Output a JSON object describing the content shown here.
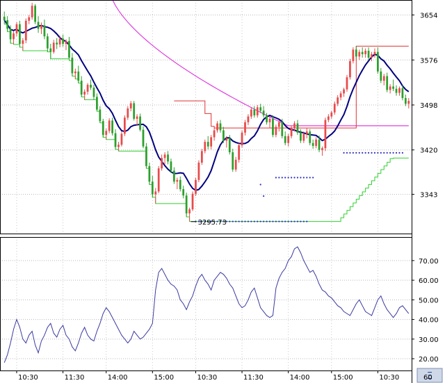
{
  "chart_data": [
    {
      "type": "candlestick",
      "panel": "price",
      "y_ticks": [
        "3654",
        "3576",
        "3498",
        "3420",
        "3343"
      ],
      "y_tick_values": [
        3654,
        3576,
        3498,
        3420,
        3343
      ],
      "ylim": [
        3275,
        3680
      ],
      "x_count": 132,
      "low_annotation": "3295.73",
      "low_annotation_value": 3295.73,
      "colors": {
        "up": "#e84a4a",
        "down": "#2ca02c",
        "ma": "#000080",
        "long_ma": "#e040e0",
        "stop_upper": "#e03030",
        "stop_lower": "#30d030",
        "dots": "#3030c0"
      },
      "candles": [
        [
          3651,
          3660,
          3638,
          3645
        ],
        [
          3645,
          3652,
          3625,
          3630
        ],
        [
          3630,
          3636,
          3605,
          3612
        ],
        [
          3612,
          3626,
          3603,
          3622
        ],
        [
          3622,
          3642,
          3617,
          3638
        ],
        [
          3638,
          3644,
          3598,
          3604
        ],
        [
          3604,
          3614,
          3592,
          3610
        ],
        [
          3610,
          3648,
          3605,
          3644
        ],
        [
          3644,
          3654,
          3638,
          3650
        ],
        [
          3650,
          3675,
          3646,
          3670
        ],
        [
          3670,
          3673,
          3638,
          3642
        ],
        [
          3642,
          3652,
          3623,
          3630
        ],
        [
          3630,
          3641,
          3621,
          3636
        ],
        [
          3636,
          3646,
          3612,
          3617
        ],
        [
          3617,
          3622,
          3590,
          3596
        ],
        [
          3596,
          3604,
          3578,
          3590
        ],
        [
          3590,
          3611,
          3587,
          3606
        ],
        [
          3606,
          3614,
          3595,
          3603
        ],
        [
          3603,
          3618,
          3598,
          3613
        ],
        [
          3613,
          3620,
          3599,
          3604
        ],
        [
          3604,
          3612,
          3593,
          3609
        ],
        [
          3609,
          3616,
          3575,
          3580
        ],
        [
          3580,
          3588,
          3548,
          3553
        ],
        [
          3553,
          3561,
          3543,
          3556
        ],
        [
          3556,
          3566,
          3536,
          3540
        ],
        [
          3540,
          3548,
          3512,
          3516
        ],
        [
          3516,
          3525,
          3507,
          3521
        ],
        [
          3521,
          3536,
          3516,
          3533
        ],
        [
          3533,
          3542,
          3524,
          3528
        ],
        [
          3528,
          3533,
          3507,
          3512
        ],
        [
          3512,
          3518,
          3487,
          3490
        ],
        [
          3490,
          3496,
          3467,
          3470
        ],
        [
          3470,
          3474,
          3442,
          3446
        ],
        [
          3446,
          3457,
          3438,
          3453
        ],
        [
          3453,
          3475,
          3449,
          3471
        ],
        [
          3471,
          3476,
          3445,
          3449
        ],
        [
          3449,
          3456,
          3421,
          3425
        ],
        [
          3425,
          3434,
          3418,
          3429
        ],
        [
          3429,
          3452,
          3426,
          3448
        ],
        [
          3448,
          3480,
          3444,
          3476
        ],
        [
          3476,
          3496,
          3472,
          3492
        ],
        [
          3492,
          3505,
          3487,
          3501
        ],
        [
          3501,
          3505,
          3471,
          3474
        ],
        [
          3474,
          3482,
          3462,
          3478
        ],
        [
          3478,
          3483,
          3452,
          3455
        ],
        [
          3455,
          3461,
          3423,
          3426
        ],
        [
          3426,
          3432,
          3388,
          3392
        ],
        [
          3392,
          3398,
          3360,
          3365
        ],
        [
          3365,
          3375,
          3338,
          3343
        ],
        [
          3343,
          3354,
          3327,
          3348
        ],
        [
          3348,
          3392,
          3345,
          3388
        ],
        [
          3388,
          3412,
          3384,
          3406
        ],
        [
          3406,
          3416,
          3395,
          3412
        ],
        [
          3412,
          3418,
          3395,
          3400
        ],
        [
          3400,
          3405,
          3380,
          3384
        ],
        [
          3384,
          3390,
          3361,
          3365
        ],
        [
          3365,
          3372,
          3352,
          3368
        ],
        [
          3368,
          3374,
          3348,
          3352
        ],
        [
          3352,
          3358,
          3336,
          3341
        ],
        [
          3341,
          3346,
          3304,
          3310
        ],
        [
          3310,
          3320,
          3296,
          3317
        ],
        [
          3317,
          3348,
          3314,
          3344
        ],
        [
          3344,
          3372,
          3340,
          3368
        ],
        [
          3368,
          3402,
          3364,
          3398
        ],
        [
          3398,
          3422,
          3394,
          3418
        ],
        [
          3418,
          3438,
          3414,
          3434
        ],
        [
          3434,
          3444,
          3421,
          3426
        ],
        [
          3426,
          3446,
          3421,
          3442
        ],
        [
          3442,
          3458,
          3436,
          3454
        ],
        [
          3454,
          3470,
          3450,
          3466
        ],
        [
          3466,
          3472,
          3450,
          3454
        ],
        [
          3454,
          3460,
          3432,
          3436
        ],
        [
          3436,
          3444,
          3424,
          3440
        ],
        [
          3440,
          3446,
          3412,
          3416
        ],
        [
          3416,
          3422,
          3382,
          3386
        ],
        [
          3386,
          3408,
          3382,
          3403
        ],
        [
          3403,
          3432,
          3398,
          3428
        ],
        [
          3428,
          3454,
          3424,
          3450
        ],
        [
          3450,
          3472,
          3445,
          3468
        ],
        [
          3468,
          3482,
          3463,
          3478
        ],
        [
          3478,
          3494,
          3474,
          3490
        ],
        [
          3490,
          3496,
          3476,
          3480
        ],
        [
          3480,
          3498,
          3476,
          3494
        ],
        [
          3494,
          3500,
          3484,
          3488
        ],
        [
          3488,
          3496,
          3476,
          3480
        ],
        [
          3480,
          3484,
          3464,
          3468
        ],
        [
          3468,
          3478,
          3458,
          3474
        ],
        [
          3474,
          3480,
          3442,
          3446
        ],
        [
          3446,
          3464,
          3442,
          3460
        ],
        [
          3460,
          3472,
          3452,
          3468
        ],
        [
          3468,
          3474,
          3440,
          3444
        ],
        [
          3444,
          3452,
          3428,
          3432
        ],
        [
          3432,
          3448,
          3426,
          3444
        ],
        [
          3444,
          3462,
          3440,
          3458
        ],
        [
          3458,
          3470,
          3452,
          3466
        ],
        [
          3466,
          3472,
          3446,
          3450
        ],
        [
          3450,
          3456,
          3432,
          3436
        ],
        [
          3436,
          3452,
          3432,
          3448
        ],
        [
          3448,
          3458,
          3440,
          3452
        ],
        [
          3452,
          3456,
          3428,
          3432
        ],
        [
          3432,
          3438,
          3422,
          3427
        ],
        [
          3427,
          3442,
          3423,
          3438
        ],
        [
          3438,
          3445,
          3416,
          3420
        ],
        [
          3420,
          3426,
          3410,
          3423
        ],
        [
          3423,
          3476,
          3418,
          3472
        ],
        [
          3472,
          3482,
          3468,
          3478
        ],
        [
          3478,
          3488,
          3474,
          3485
        ],
        [
          3485,
          3504,
          3481,
          3500
        ],
        [
          3500,
          3515,
          3496,
          3511
        ],
        [
          3511,
          3522,
          3506,
          3518
        ],
        [
          3518,
          3528,
          3512,
          3525
        ],
        [
          3525,
          3550,
          3521,
          3546
        ],
        [
          3546,
          3578,
          3542,
          3574
        ],
        [
          3574,
          3598,
          3570,
          3594
        ],
        [
          3594,
          3600,
          3578,
          3582
        ],
        [
          3582,
          3594,
          3576,
          3590
        ],
        [
          3590,
          3598,
          3580,
          3586
        ],
        [
          3586,
          3596,
          3580,
          3592
        ],
        [
          3592,
          3598,
          3576,
          3580
        ],
        [
          3580,
          3590,
          3574,
          3586
        ],
        [
          3586,
          3596,
          3580,
          3590
        ],
        [
          3590,
          3598,
          3552,
          3556
        ],
        [
          3556,
          3562,
          3536,
          3540
        ],
        [
          3540,
          3552,
          3532,
          3548
        ],
        [
          3548,
          3554,
          3520,
          3524
        ],
        [
          3524,
          3534,
          3518,
          3530
        ],
        [
          3530,
          3542,
          3522,
          3526
        ],
        [
          3526,
          3532,
          3514,
          3519
        ],
        [
          3519,
          3530,
          3514,
          3527
        ],
        [
          3527,
          3532,
          3506,
          3510
        ],
        [
          3510,
          3516,
          3496,
          3500
        ],
        [
          3500,
          3510,
          3492,
          3505
        ]
      ]
    },
    {
      "type": "line",
      "panel": "oscillator",
      "y_ticks": [
        "70.00",
        "60.00",
        "50.00",
        "40.00",
        "30.00",
        "20.00"
      ],
      "y_tick_values": [
        70,
        60,
        50,
        40,
        30,
        20
      ],
      "ylim": [
        14,
        82
      ],
      "values": [
        18,
        22,
        28,
        35,
        40,
        36,
        30,
        28,
        32,
        34,
        27,
        23,
        29,
        32,
        36,
        38,
        33,
        31,
        35,
        37,
        32,
        30,
        26,
        24,
        28,
        33,
        36,
        32,
        30,
        29,
        34,
        38,
        43,
        46,
        44,
        41,
        38,
        35,
        32,
        30,
        28,
        30,
        34,
        32,
        30,
        31,
        33,
        35,
        38,
        55,
        64,
        66,
        63,
        60,
        58,
        57,
        55,
        50,
        48,
        45,
        49,
        52,
        57,
        61,
        63,
        60,
        58,
        55,
        60,
        62,
        64,
        63,
        61,
        58,
        56,
        52,
        48,
        46,
        47,
        50,
        54,
        56,
        51,
        46,
        44,
        42,
        41,
        42,
        56,
        61,
        64,
        66,
        70,
        72,
        76,
        77,
        74,
        70,
        67,
        64,
        65,
        62,
        58,
        55,
        54,
        52,
        51,
        49,
        47,
        46,
        44,
        43,
        42,
        45,
        48,
        50,
        47,
        44,
        43,
        42,
        46,
        50,
        52,
        48,
        45,
        43,
        41,
        43,
        46,
        47,
        45,
        43
      ]
    }
  ],
  "x_axis": {
    "labels": [
      "10:30",
      "11:30",
      "14:00",
      "15:00",
      "10:30",
      "11:30",
      "14:00",
      "15:00",
      "10:30"
    ],
    "label_index": [
      4,
      19,
      33,
      48,
      62,
      77,
      92,
      106,
      121
    ],
    "corner_label": "60"
  },
  "ui": {
    "logo_text": "Ξ"
  }
}
